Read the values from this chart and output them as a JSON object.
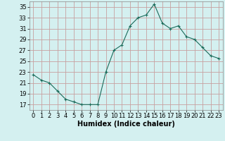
{
  "x": [
    0,
    1,
    2,
    3,
    4,
    5,
    6,
    7,
    8,
    9,
    10,
    11,
    12,
    13,
    14,
    15,
    16,
    17,
    18,
    19,
    20,
    21,
    22,
    23
  ],
  "y": [
    22.5,
    21.5,
    21.0,
    19.5,
    18.0,
    17.5,
    17.0,
    17.0,
    17.0,
    23.0,
    27.0,
    28.0,
    31.5,
    33.0,
    33.5,
    35.5,
    32.0,
    31.0,
    31.5,
    29.5,
    29.0,
    27.5,
    26.0,
    25.5
  ],
  "line_color": "#1a6b5a",
  "marker": "+",
  "bg_color": "#d4f0f0",
  "grid_color": "#c8a0a0",
  "xlabel": "Humidex (Indice chaleur)",
  "yticks": [
    17,
    19,
    21,
    23,
    25,
    27,
    29,
    31,
    33,
    35
  ],
  "xticks": [
    0,
    1,
    2,
    3,
    4,
    5,
    6,
    7,
    8,
    9,
    10,
    11,
    12,
    13,
    14,
    15,
    16,
    17,
    18,
    19,
    20,
    21,
    22,
    23
  ],
  "xlim": [
    -0.5,
    23.5
  ],
  "ylim": [
    16,
    36
  ],
  "xlabel_fontsize": 7,
  "tick_fontsize": 6
}
